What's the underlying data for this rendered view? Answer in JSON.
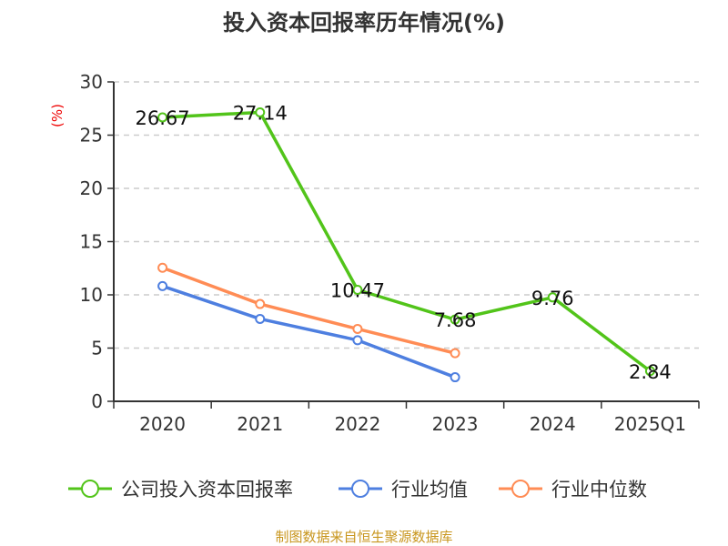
{
  "chart_data": {
    "type": "line",
    "title": "投入资本回报率历年情况(%)",
    "ylabel": "(%)",
    "xlabel": "",
    "categories": [
      "2020",
      "2021",
      "2022",
      "2023",
      "2024",
      "2025Q1"
    ],
    "ylim": [
      0,
      30
    ],
    "yticks": [
      0,
      5,
      10,
      15,
      20,
      25,
      30
    ],
    "grid": true,
    "legend_position": "bottom",
    "series": [
      {
        "name": "公司投入资本回报率",
        "color": "#52c41a",
        "values": [
          26.67,
          27.14,
          10.47,
          7.68,
          9.76,
          2.84
        ],
        "labels": [
          "26.67",
          "27.14",
          "10.47",
          "7.68",
          "9.76",
          "2.84"
        ]
      },
      {
        "name": "行业均值",
        "color": "#4e7fe0",
        "values": [
          10.82,
          7.74,
          5.74,
          2.26,
          null,
          null
        ]
      },
      {
        "name": "行业中位数",
        "color": "#ff8c55",
        "values": [
          12.54,
          9.14,
          6.8,
          4.52,
          null,
          null
        ]
      }
    ]
  },
  "footer": "制图数据来自恒生聚源数据库"
}
